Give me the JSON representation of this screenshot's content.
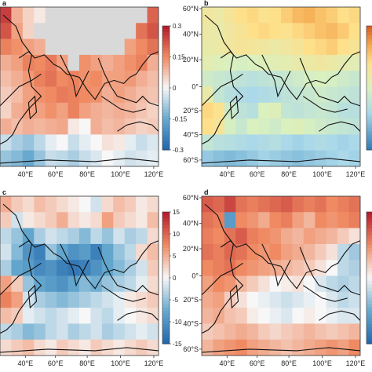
{
  "chart_data": [
    {
      "type": "heatmap",
      "panel_label": "a",
      "title": "",
      "x_ticks": [],
      "y_ticks": [],
      "colorbar": {
        "ticks": [
          "0.3",
          "0.15",
          "0",
          "-0.15",
          "-0.3"
        ],
        "range": [
          -0.3,
          0.3
        ]
      },
      "background": "#d9d9d9",
      "field": [
        [
          0.25,
          0.1,
          0.05,
          0.02,
          0.0,
          0.0,
          0.0,
          0.0,
          0.0,
          0.0,
          0.0,
          0.0,
          0.0,
          0.2
        ],
        [
          0.22,
          0.12,
          0.05,
          0.0,
          0.0,
          0.0,
          0.0,
          0.0,
          0.0,
          0.0,
          0.0,
          0.0,
          0.18,
          0.22
        ],
        [
          0.16,
          0.14,
          0.12,
          0.1,
          0.0,
          0.0,
          0.0,
          0.0,
          0.0,
          0.0,
          0.0,
          0.12,
          0.15,
          0.18
        ],
        [
          0.1,
          0.12,
          0.16,
          0.15,
          0.17,
          0.12,
          0.0,
          0.14,
          0.12,
          0.1,
          0.12,
          0.14,
          0.16,
          0.1
        ],
        [
          0.08,
          0.1,
          0.13,
          0.16,
          0.18,
          0.15,
          0.16,
          0.14,
          0.15,
          0.12,
          0.12,
          0.13,
          0.1,
          0.08
        ],
        [
          0.06,
          0.08,
          0.12,
          0.14,
          0.15,
          0.17,
          0.16,
          0.15,
          0.14,
          0.1,
          0.12,
          0.1,
          0.08,
          0.07
        ],
        [
          0.05,
          0.1,
          0.12,
          0.12,
          0.14,
          0.12,
          0.16,
          0.12,
          0.1,
          0.09,
          0.1,
          0.09,
          0.07,
          0.05
        ],
        [
          0.1,
          0.08,
          0.1,
          0.09,
          0.1,
          0.11,
          0.02,
          0.0,
          0.1,
          0.08,
          0.09,
          0.07,
          0.05,
          0.06
        ],
        [
          -0.05,
          -0.08,
          -0.1,
          -0.06,
          -0.02,
          0.0,
          -0.05,
          -0.02,
          0.0,
          0.03,
          0.02,
          -0.02,
          -0.05,
          -0.03
        ],
        [
          -0.1,
          -0.12,
          -0.15,
          -0.1,
          -0.05,
          -0.06,
          -0.08,
          -0.05,
          -0.03,
          0.0,
          -0.02,
          -0.04,
          -0.03,
          -0.02
        ]
      ]
    },
    {
      "type": "heatmap",
      "panel_label": "b",
      "title": "",
      "x_ticks": [
        "40°E",
        "60°E",
        "80°E",
        "100°E",
        "120°E"
      ],
      "y_ticks": [
        "60°N",
        "40°N",
        "20°N",
        "0°",
        "20°S",
        "40°S",
        "60°S"
      ],
      "colorbar": {
        "ticks": [],
        "range": [
          0,
          1
        ]
      },
      "field": [
        [
          0.62,
          0.6,
          0.65,
          0.7,
          0.72,
          0.68,
          0.7,
          0.75,
          0.8,
          0.82,
          0.78,
          0.75,
          0.7,
          0.72
        ],
        [
          0.6,
          0.58,
          0.62,
          0.66,
          0.7,
          0.72,
          0.7,
          0.68,
          0.72,
          0.75,
          0.78,
          0.8,
          0.76,
          0.7
        ],
        [
          0.58,
          0.6,
          0.62,
          0.65,
          0.64,
          0.62,
          0.6,
          0.62,
          0.65,
          0.7,
          0.72,
          0.75,
          0.7,
          0.66
        ],
        [
          0.55,
          0.52,
          0.5,
          0.48,
          0.5,
          0.52,
          0.54,
          0.55,
          0.58,
          0.6,
          0.62,
          0.6,
          0.56,
          0.54
        ],
        [
          0.45,
          0.42,
          0.4,
          0.38,
          0.36,
          0.38,
          0.4,
          0.42,
          0.45,
          0.48,
          0.5,
          0.48,
          0.45,
          0.42
        ],
        [
          0.58,
          0.4,
          0.35,
          0.32,
          0.3,
          0.32,
          0.34,
          0.38,
          0.4,
          0.42,
          0.45,
          0.42,
          0.4,
          0.38
        ],
        [
          0.72,
          0.68,
          0.45,
          0.38,
          0.35,
          0.5,
          0.52,
          0.4,
          0.38,
          0.4,
          0.42,
          0.4,
          0.36,
          0.35
        ],
        [
          0.7,
          0.65,
          0.48,
          0.42,
          0.5,
          0.48,
          0.45,
          0.5,
          0.52,
          0.48,
          0.45,
          0.42,
          0.4,
          0.38
        ],
        [
          0.4,
          0.36,
          0.34,
          0.32,
          0.3,
          0.32,
          0.34,
          0.3,
          0.28,
          0.3,
          0.32,
          0.3,
          0.28,
          0.3
        ],
        [
          0.25,
          0.22,
          0.2,
          0.22,
          0.25,
          0.28,
          0.26,
          0.24,
          0.22,
          0.24,
          0.26,
          0.28,
          0.3,
          0.28
        ]
      ]
    },
    {
      "type": "heatmap",
      "panel_label": "c",
      "title": "",
      "x_ticks": [],
      "y_ticks": [],
      "colorbar": {
        "ticks": [
          "15",
          "10",
          "5",
          "0",
          "-5",
          "-10",
          "-15"
        ],
        "range": [
          -15,
          15
        ]
      },
      "field": [
        [
          5,
          3,
          2,
          4,
          3,
          2,
          1,
          0,
          -2,
          2,
          4,
          3,
          1,
          2
        ],
        [
          3,
          -2,
          1,
          2,
          3,
          5,
          2,
          1,
          2,
          6,
          3,
          2,
          1,
          4
        ],
        [
          -3,
          -5,
          -8,
          -4,
          -2,
          -3,
          -4,
          -6,
          -3,
          -5,
          -2,
          -4,
          -3,
          2
        ],
        [
          -2,
          -6,
          -10,
          -12,
          -5,
          -8,
          -10,
          -9,
          -12,
          -8,
          -5,
          -3,
          2,
          4
        ],
        [
          -4,
          -8,
          -9,
          -11,
          -10,
          -12,
          -13,
          -12,
          -10,
          -8,
          -6,
          -4,
          -2,
          3
        ],
        [
          6,
          3,
          -5,
          -8,
          -9,
          -10,
          -8,
          -6,
          -7,
          -5,
          -4,
          -3,
          -1,
          2
        ],
        [
          8,
          6,
          -2,
          -4,
          -5,
          -6,
          -5,
          -4,
          -3,
          -2,
          -1,
          1,
          2,
          3
        ],
        [
          4,
          3,
          -1,
          -2,
          -3,
          -2,
          -1,
          0,
          -2,
          -3,
          -1,
          0,
          1,
          2
        ],
        [
          -3,
          -4,
          -6,
          -5,
          -3,
          -2,
          -4,
          -3,
          -2,
          -4,
          -3,
          -2,
          -1,
          -2
        ],
        [
          2,
          3,
          4,
          2,
          1,
          3,
          2,
          1,
          3,
          2,
          1,
          2,
          3,
          2
        ]
      ]
    },
    {
      "type": "heatmap",
      "panel_label": "d",
      "title": "",
      "x_ticks": [
        "40°E",
        "60°E",
        "80°E",
        "100°E",
        "120°E"
      ],
      "y_ticks": [
        "60°N",
        "40°N",
        "20°N",
        "0°",
        "20°S",
        "40°S",
        "60°S"
      ],
      "colorbar": {
        "ticks": [],
        "range": [
          -1,
          1
        ]
      },
      "field": [
        [
          0.7,
          0.65,
          0.8,
          0.6,
          0.55,
          0.6,
          0.65,
          0.7,
          0.6,
          0.55,
          0.6,
          0.5,
          0.55,
          0.6
        ],
        [
          0.6,
          0.55,
          -0.6,
          0.5,
          0.45,
          0.35,
          0.5,
          0.55,
          0.4,
          0.3,
          0.5,
          0.45,
          0.5,
          0.55
        ],
        [
          0.55,
          0.5,
          0.6,
          0.7,
          0.55,
          0.5,
          0.45,
          0.35,
          0.3,
          0.4,
          0.35,
          0.3,
          0.2,
          0.1
        ],
        [
          0.6,
          0.55,
          0.65,
          0.6,
          0.5,
          0.45,
          0.5,
          0.4,
          0.35,
          0.3,
          0.2,
          0.1,
          -0.2,
          -0.3
        ],
        [
          0.5,
          0.55,
          0.6,
          0.5,
          0.45,
          0.4,
          0.35,
          0.3,
          0.25,
          0.2,
          0.1,
          0.0,
          -0.2,
          -0.25
        ],
        [
          0.4,
          0.5,
          0.45,
          0.3,
          0.2,
          0.1,
          0.0,
          0.05,
          0.1,
          0.0,
          -0.1,
          -0.2,
          -0.25,
          -0.2
        ],
        [
          0.35,
          0.4,
          0.2,
          0.1,
          0.0,
          -0.05,
          -0.1,
          -0.15,
          -0.1,
          -0.05,
          0.0,
          -0.1,
          -0.2,
          -0.15
        ],
        [
          0.3,
          0.35,
          0.25,
          0.2,
          0.05,
          0.0,
          -0.05,
          -0.1,
          0.0,
          0.05,
          0.0,
          -0.05,
          -0.1,
          -0.1
        ],
        [
          0.2,
          0.25,
          0.3,
          0.35,
          0.3,
          0.2,
          0.15,
          0.2,
          0.25,
          0.3,
          0.25,
          0.2,
          0.25,
          0.3
        ],
        [
          0.3,
          0.4,
          0.45,
          0.5,
          0.4,
          0.35,
          0.3,
          0.25,
          0.3,
          0.35,
          0.4,
          0.45,
          0.4,
          0.5
        ]
      ]
    }
  ]
}
